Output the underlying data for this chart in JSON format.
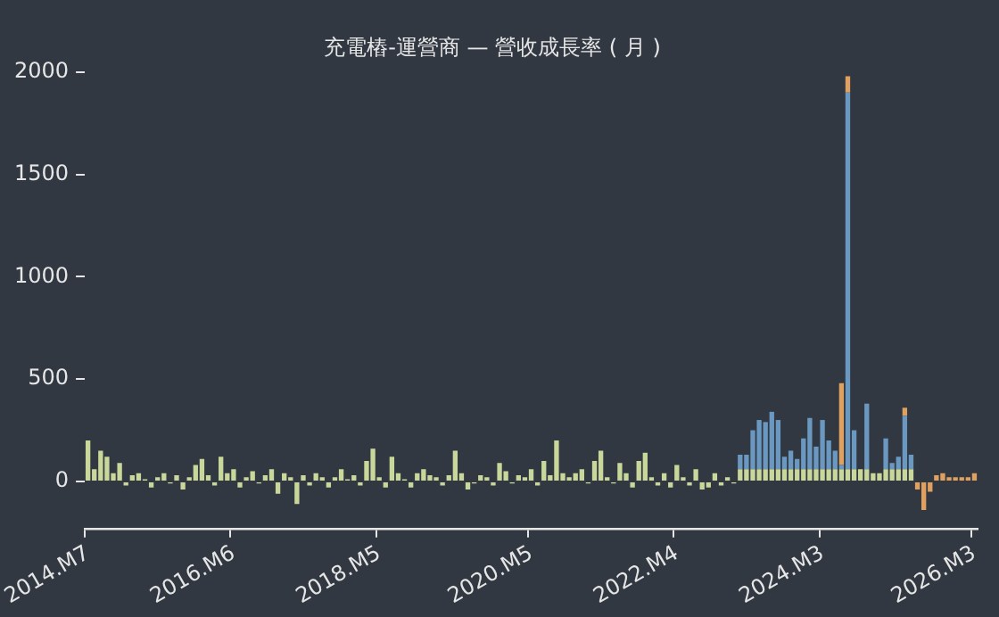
{
  "chart_data": {
    "type": "bar",
    "title": "充電樁-運營商 — 營收成長率 ( 月 )",
    "categories": [
      "2014.M7",
      null,
      null,
      null,
      null,
      null,
      null,
      null,
      null,
      null,
      null,
      null,
      null,
      null,
      null,
      null,
      null,
      null,
      null,
      null,
      null,
      null,
      null,
      "2016.M6",
      null,
      null,
      null,
      null,
      null,
      null,
      null,
      null,
      null,
      null,
      null,
      null,
      null,
      null,
      null,
      null,
      null,
      null,
      null,
      null,
      null,
      null,
      "2018.M5",
      null,
      null,
      null,
      null,
      null,
      null,
      null,
      null,
      null,
      null,
      null,
      null,
      null,
      null,
      null,
      null,
      null,
      null,
      null,
      null,
      null,
      null,
      null,
      "2020.M5",
      null,
      null,
      null,
      null,
      null,
      null,
      null,
      null,
      null,
      null,
      null,
      null,
      null,
      null,
      null,
      null,
      null,
      null,
      null,
      null,
      null,
      null,
      "2022.M4",
      null,
      null,
      null,
      null,
      null,
      null,
      null,
      null,
      null,
      null,
      null,
      null,
      null,
      null,
      null,
      null,
      null,
      null,
      null,
      null,
      null,
      null,
      "2024.M3",
      null,
      null,
      null,
      null,
      null,
      null,
      null,
      null,
      null,
      null,
      null,
      null,
      null,
      null,
      null,
      null,
      null,
      null,
      null,
      null,
      null,
      null,
      null,
      "2026.M3"
    ],
    "series": [
      {
        "color": "#c9d79a",
        "values": [
          200,
          60,
          150,
          120,
          40,
          90,
          -20,
          30,
          40,
          10,
          -30,
          20,
          40,
          -10,
          30,
          -40,
          20,
          80,
          110,
          30,
          -20,
          120,
          40,
          60,
          -30,
          20,
          50,
          -10,
          30,
          60,
          -60,
          40,
          20,
          -110,
          30,
          -20,
          40,
          20,
          -30,
          20,
          60,
          10,
          30,
          -20,
          100,
          160,
          20,
          -30,
          120,
          40,
          10,
          -30,
          40,
          60,
          30,
          20,
          -20,
          30,
          150,
          40,
          -40,
          -10,
          30,
          20,
          -20,
          90,
          50,
          -10,
          30,
          20,
          60,
          -20,
          100,
          30,
          200,
          40,
          20,
          40,
          60,
          -10,
          100,
          150,
          20,
          -10,
          90,
          40,
          -30,
          100,
          140,
          20,
          -20,
          40,
          -30,
          80,
          20,
          -20,
          60,
          -40,
          -30,
          40,
          -20,
          20,
          -10,
          60,
          60,
          60,
          60,
          60,
          60,
          60,
          60,
          60,
          60,
          60,
          60,
          60,
          60,
          60,
          60,
          60,
          60,
          60,
          60,
          60,
          40,
          40,
          60,
          60,
          60,
          60,
          60,
          null,
          null,
          null,
          null,
          null,
          null,
          null,
          null,
          null,
          null
        ]
      },
      {
        "color": "#6a98c0",
        "values": [
          null,
          null,
          null,
          null,
          null,
          null,
          null,
          null,
          null,
          null,
          null,
          null,
          null,
          null,
          null,
          null,
          null,
          null,
          null,
          null,
          null,
          null,
          null,
          null,
          null,
          null,
          null,
          null,
          null,
          null,
          null,
          null,
          null,
          null,
          null,
          null,
          null,
          null,
          null,
          null,
          null,
          null,
          null,
          null,
          null,
          null,
          null,
          null,
          null,
          null,
          null,
          null,
          null,
          null,
          null,
          null,
          null,
          null,
          null,
          null,
          null,
          null,
          null,
          null,
          null,
          null,
          null,
          null,
          null,
          null,
          null,
          null,
          null,
          null,
          null,
          null,
          null,
          null,
          null,
          null,
          null,
          null,
          null,
          null,
          null,
          null,
          null,
          null,
          null,
          null,
          null,
          null,
          null,
          null,
          null,
          null,
          null,
          null,
          null,
          null,
          null,
          null,
          null,
          70,
          70,
          190,
          240,
          230,
          280,
          240,
          60,
          90,
          50,
          150,
          250,
          110,
          240,
          140,
          90,
          20,
          1840,
          190,
          null,
          320,
          null,
          null,
          150,
          30,
          60,
          260,
          70,
          null,
          null,
          null,
          null,
          null,
          null,
          null,
          null,
          null,
          null
        ]
      },
      {
        "color": "#e0a060",
        "values": [
          null,
          null,
          null,
          null,
          null,
          null,
          null,
          null,
          null,
          null,
          null,
          null,
          null,
          null,
          null,
          null,
          null,
          null,
          null,
          null,
          null,
          null,
          null,
          null,
          null,
          null,
          null,
          null,
          null,
          null,
          null,
          null,
          null,
          null,
          null,
          null,
          null,
          null,
          null,
          null,
          null,
          null,
          null,
          null,
          null,
          null,
          null,
          null,
          null,
          null,
          null,
          null,
          null,
          null,
          null,
          null,
          null,
          null,
          null,
          null,
          null,
          null,
          null,
          null,
          null,
          null,
          null,
          null,
          null,
          null,
          null,
          null,
          null,
          null,
          null,
          null,
          null,
          null,
          null,
          null,
          null,
          null,
          null,
          null,
          null,
          null,
          null,
          null,
          null,
          null,
          null,
          null,
          null,
          null,
          null,
          null,
          null,
          null,
          null,
          null,
          null,
          null,
          null,
          null,
          null,
          null,
          null,
          null,
          null,
          null,
          null,
          null,
          null,
          null,
          null,
          null,
          null,
          null,
          null,
          400,
          80,
          null,
          null,
          null,
          null,
          null,
          null,
          null,
          null,
          40,
          null,
          -40,
          -140,
          -50,
          30,
          40,
          20,
          20,
          20,
          20,
          40
        ]
      }
    ],
    "stacked": true,
    "ylim": [
      -230,
      2000
    ],
    "yticks": [
      0,
      500,
      1000,
      1500,
      2000
    ],
    "grid": false,
    "legend": false
  }
}
